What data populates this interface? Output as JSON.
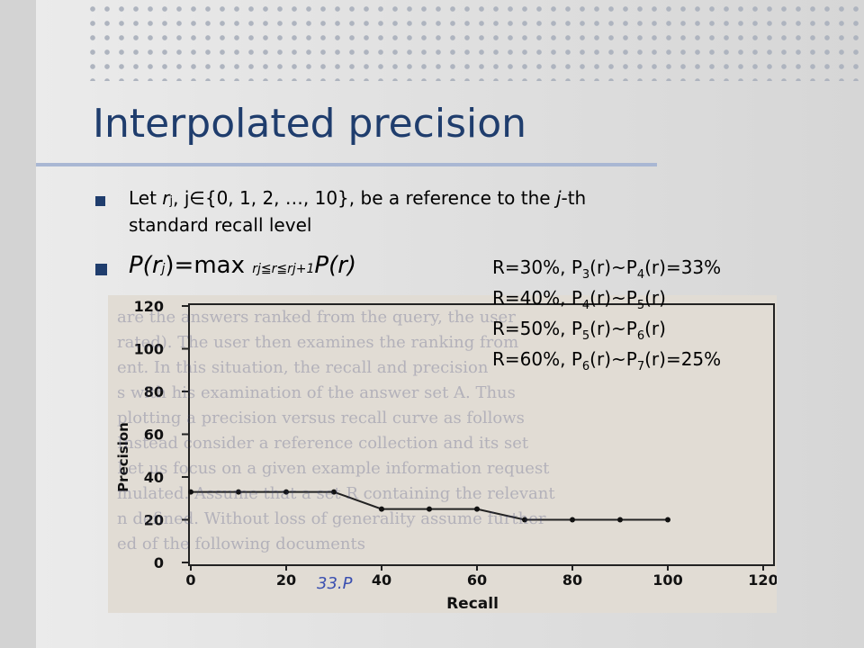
{
  "title": "Interpolated precision",
  "bullet1": {
    "let": "Let ",
    "r": "r",
    "j_sub": "j",
    "set_text": ", j∈{0, 1, 2, …, 10}, be a reference to the ",
    "j": "j",
    "rest": "-th",
    "line2": "standard recall level"
  },
  "bullet2": {
    "P": "P(r",
    "j": "j",
    "max": ")=max ",
    "range": "r",
    "range_j": "j",
    "range_mid": "≦r≦r",
    "range_j1": "j+1",
    "end": "P(r)"
  },
  "notes": [
    {
      "pre": "R=30%, P",
      "s1": "3",
      "mid": "(r)~P",
      "s2": "4",
      "post": "(r)=33%"
    },
    {
      "pre": "R=40%, P",
      "s1": "4",
      "mid": "(r)~P",
      "s2": "5",
      "post": "(r)"
    },
    {
      "pre": "R=50%, P",
      "s1": "5",
      "mid": "(r)~P",
      "s2": "6",
      "post": "(r)"
    },
    {
      "pre": "R=60%, P",
      "s1": "6",
      "mid": "(r)~P",
      "s2": "7",
      "post": "(r)=25%"
    }
  ],
  "chart_data": {
    "type": "line",
    "xlabel": "Recall",
    "ylabel": "Precision",
    "xlim": [
      0,
      120
    ],
    "ylim": [
      0,
      120
    ],
    "x_ticks": [
      "0",
      "20",
      "40",
      "60",
      "80",
      "100",
      "120"
    ],
    "y_ticks": [
      "0",
      "20",
      "40",
      "60",
      "80",
      "100",
      "120"
    ],
    "series": [
      {
        "x": [
          0,
          10,
          20,
          30,
          40,
          50,
          60,
          70,
          80,
          90,
          100
        ],
        "y": [
          33,
          33,
          33,
          33,
          25,
          25,
          25,
          20,
          20,
          20,
          20
        ]
      }
    ],
    "annotation": "33.P"
  }
}
